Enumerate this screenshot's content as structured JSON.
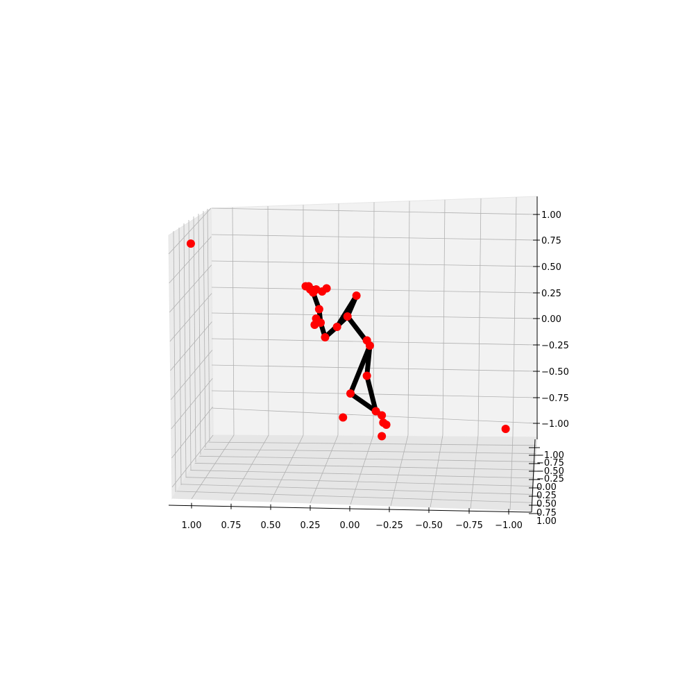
{
  "chart_data": {
    "type": "scatter",
    "title": "",
    "xlabel": "",
    "ylabel": "",
    "zlabel": "",
    "grid": true,
    "xlim": [
      -1.0,
      1.0
    ],
    "ylim": [
      -1.0,
      1.0
    ],
    "zlim": [
      -1.0,
      1.0
    ],
    "x_ticks": [
      "1.00",
      "0.75",
      "0.50",
      "0.25",
      "0.00",
      "−0.25",
      "−0.50",
      "−0.75",
      "−1.00"
    ],
    "y_ticks": [
      "−1.00",
      "−0.75",
      "−0.50",
      "−0.25",
      "0.00",
      "0.25",
      "0.50",
      "0.75",
      "1.00"
    ],
    "z_ticks": [
      "1.00",
      "0.75",
      "0.50",
      "0.25",
      "0.00",
      "−0.25",
      "−0.50",
      "−0.75",
      "−1.00"
    ],
    "marker_color": "#ff0000",
    "line_color": "#000000",
    "points": [
      {
        "id": "p0",
        "x": -0.04,
        "z": 0.22
      },
      {
        "id": "p1",
        "x": 0.02,
        "z": 0.02
      },
      {
        "id": "p2",
        "x": -0.11,
        "z": -0.21
      },
      {
        "id": "p3",
        "x": -0.13,
        "z": -0.26
      },
      {
        "id": "p4",
        "x": 0.0,
        "z": -0.72
      },
      {
        "id": "p5",
        "x": 0.05,
        "z": -0.95
      },
      {
        "id": "p6",
        "x": -0.11,
        "z": -0.55
      },
      {
        "id": "p7",
        "x": -0.17,
        "z": -0.89
      },
      {
        "id": "p8",
        "x": -0.21,
        "z": -0.93
      },
      {
        "id": "p9",
        "x": -0.22,
        "z": -1.0
      },
      {
        "id": "p10",
        "x": -0.24,
        "z": -1.02
      },
      {
        "id": "p11",
        "x": -0.21,
        "z": -1.13
      },
      {
        "id": "p12",
        "x": 0.09,
        "z": -0.08
      },
      {
        "id": "p13",
        "x": 0.17,
        "z": -0.18
      },
      {
        "id": "p14",
        "x": 0.2,
        "z": -0.04
      },
      {
        "id": "p15",
        "x": 0.21,
        "z": 0.09
      },
      {
        "id": "p16",
        "x": 0.23,
        "z": 0.0
      },
      {
        "id": "p17",
        "x": 0.24,
        "z": -0.06
      },
      {
        "id": "p18",
        "x": 0.25,
        "z": 0.25
      },
      {
        "id": "p19",
        "x": 0.23,
        "z": 0.28
      },
      {
        "id": "p20",
        "x": 0.27,
        "z": 0.28
      },
      {
        "id": "p21",
        "x": 0.28,
        "z": 0.31
      },
      {
        "id": "p22",
        "x": 0.3,
        "z": 0.31
      },
      {
        "id": "p23",
        "x": 0.16,
        "z": 0.29
      },
      {
        "id": "p24",
        "x": 0.19,
        "z": 0.26
      },
      {
        "id": "p25",
        "x": 1.07,
        "z": 0.72
      },
      {
        "id": "p26",
        "x": -1.04,
        "z": -1.06
      }
    ],
    "bones": [
      [
        "p0",
        "p1"
      ],
      [
        "p1",
        "p13"
      ],
      [
        "p1",
        "p3"
      ],
      [
        "p3",
        "p6"
      ],
      [
        "p6",
        "p7"
      ],
      [
        "p3",
        "p4"
      ],
      [
        "p4",
        "p8"
      ],
      [
        "p0",
        "p12"
      ],
      [
        "p12",
        "p13"
      ],
      [
        "p13",
        "p14"
      ],
      [
        "p14",
        "p15"
      ],
      [
        "p15",
        "p18"
      ],
      [
        "p18",
        "p22"
      ],
      [
        "p22",
        "p19"
      ]
    ]
  }
}
